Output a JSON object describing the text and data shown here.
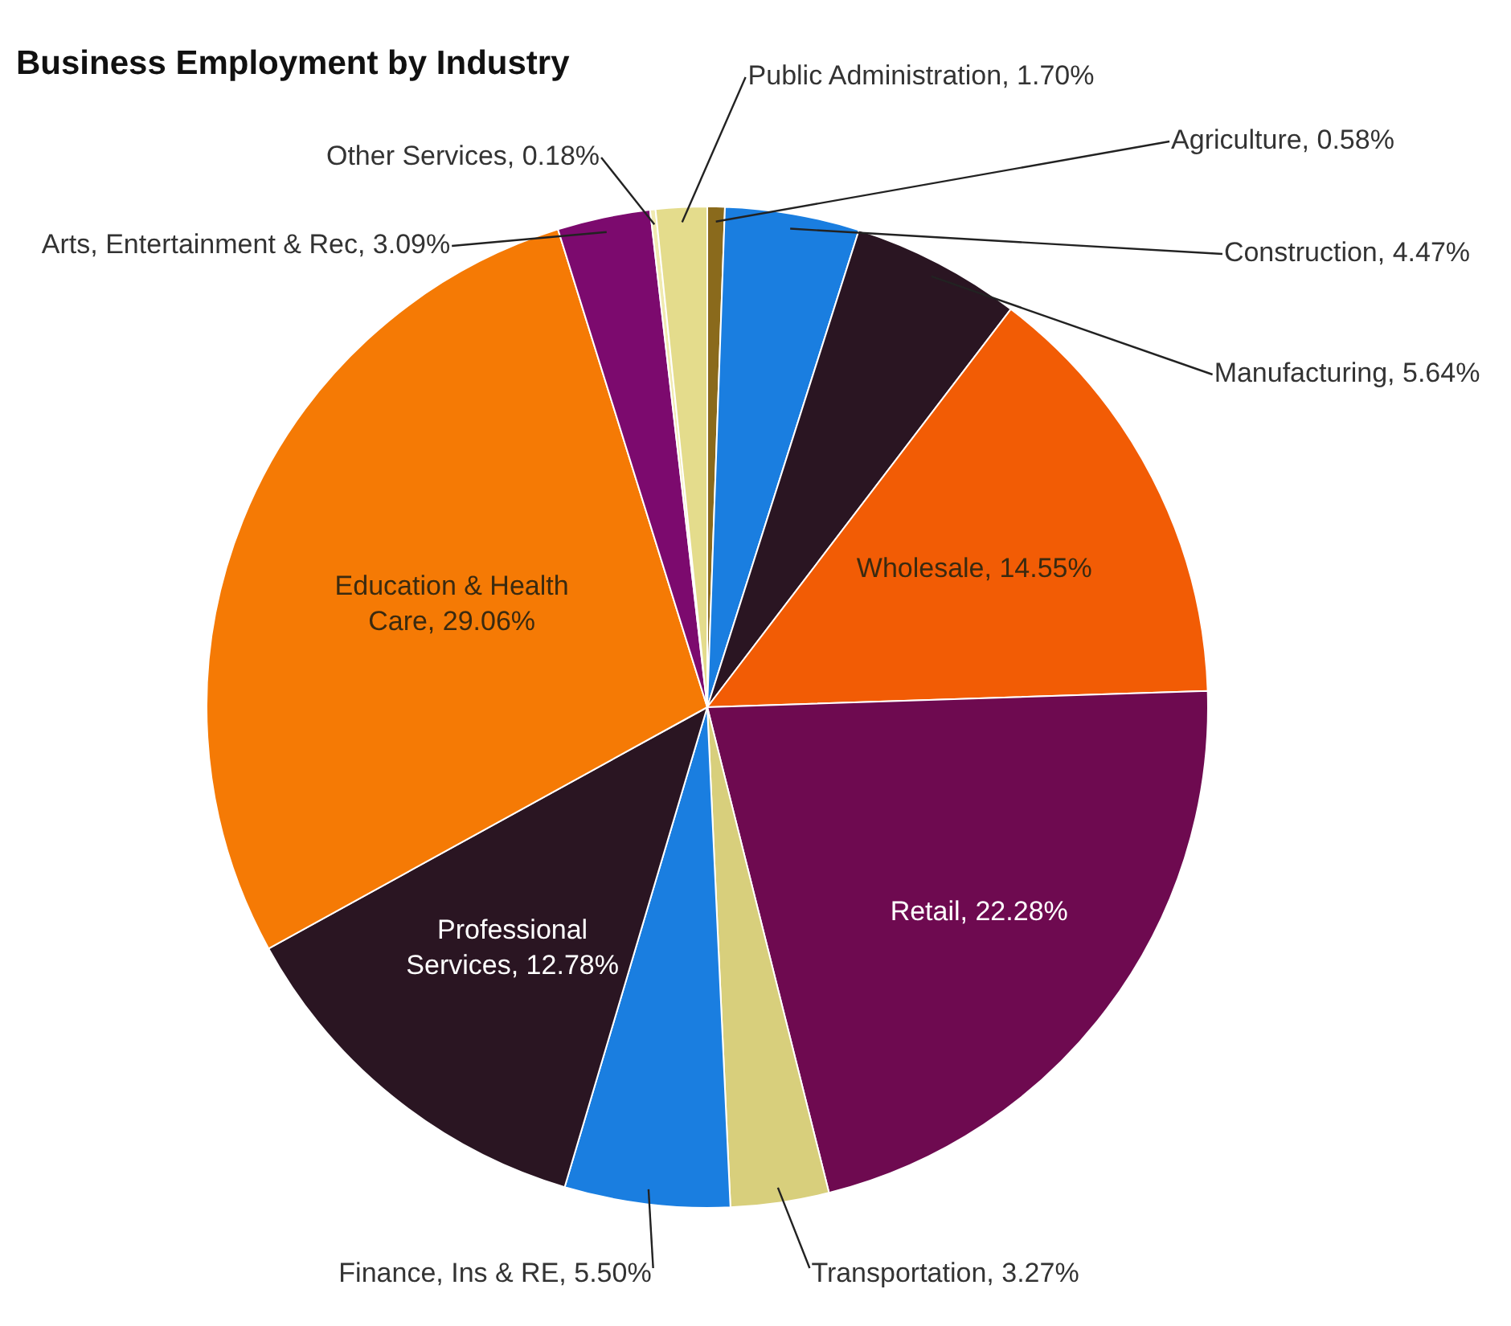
{
  "chart_data": {
    "type": "pie",
    "title": "Business Employment by Industry",
    "categories": [
      "Agriculture",
      "Construction",
      "Manufacturing",
      "Wholesale",
      "Retail",
      "Transportation",
      "Finance, Ins & RE",
      "Professional Services",
      "Education & Health Care",
      "Arts, Entertainment & Rec",
      "Other Services",
      "Public Administration"
    ],
    "values": [
      0.58,
      4.47,
      5.64,
      14.55,
      22.28,
      3.27,
      5.5,
      12.78,
      29.06,
      3.09,
      0.18,
      1.7
    ],
    "value_labels": [
      "0.58%",
      "4.47%",
      "5.64%",
      "14.55%",
      "22.28%",
      "3.27%",
      "5.50%",
      "12.78%",
      "29.06%",
      "3.09%",
      "0.18%",
      "1.70%"
    ],
    "colors": [
      "#8a6a1c",
      "#1a7ee0",
      "#2a1522",
      "#f25c05",
      "#6e0a50",
      "#d8cf7c",
      "#1a7ee0",
      "#2a1522",
      "#f57a05",
      "#7c0a6e",
      "#f0eab0",
      "#e4dc8c"
    ],
    "legend": false
  }
}
